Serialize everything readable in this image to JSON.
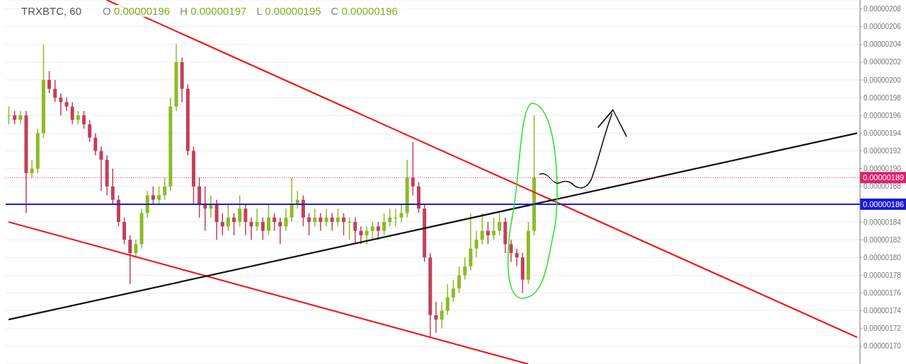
{
  "chart_data": {
    "type": "candlestick",
    "title": "TRXBTC, 60",
    "annotations": [
      "O 0.00000196",
      "H 0.00000197",
      "L 0.00000195",
      "C 0.00000196"
    ],
    "categories": [
      null,
      null,
      null,
      null,
      null,
      null,
      null,
      null,
      null,
      null,
      null,
      null,
      null,
      null,
      null,
      null,
      null,
      null,
      null,
      null,
      null,
      null,
      null,
      null,
      null,
      null,
      null,
      null,
      null,
      null,
      null,
      null,
      null,
      null,
      null,
      null,
      null,
      null,
      null,
      null,
      null,
      null,
      null,
      null,
      null,
      null,
      null,
      null,
      null,
      null,
      null,
      null,
      null,
      null,
      null,
      null,
      null,
      null,
      null,
      null,
      null,
      null,
      null,
      null,
      null,
      null,
      null,
      null,
      null,
      null,
      null,
      null,
      null,
      null,
      null,
      null,
      null,
      null,
      null,
      null,
      null,
      null,
      null,
      null,
      null,
      null,
      null,
      null,
      null,
      null,
      null,
      null,
      null,
      null,
      null,
      null,
      null,
      null,
      null,
      null,
      null,
      null,
      null,
      null,
      null,
      null,
      null,
      null,
      null,
      null,
      null,
      null,
      null,
      null,
      null,
      null,
      null,
      null,
      null,
      null,
      null,
      null,
      null,
      null,
      null,
      null,
      null,
      null,
      null,
      null,
      null,
      null,
      null,
      null,
      null,
      null,
      null,
      null,
      null,
      null,
      null,
      null,
      null,
      null,
      null,
      null,
      null,
      null
    ],
    "ohlc": [
      [
        1.96e-06,
        1.97e-06,
        1.95e-06,
        1.96e-06
      ],
      [
        1.96e-06,
        1.965e-06,
        1.95e-06,
        1.955e-06
      ],
      [
        1.955e-06,
        1.965e-06,
        1.95e-06,
        1.96e-06
      ],
      [
        1.96e-06,
        1.965e-06,
        1.85e-06,
        1.895e-06
      ],
      [
        1.895e-06,
        1.91e-06,
        1.89e-06,
        1.9e-06
      ],
      [
        1.9e-06,
        1.945e-06,
        1.895e-06,
        1.94e-06
      ],
      [
        1.94e-06,
        2.04e-06,
        1.935e-06,
        2e-06
      ],
      [
        2e-06,
        2.01e-06,
        1.985e-06,
        1.99e-06
      ],
      [
        1.99e-06,
        2e-06,
        1.975e-06,
        1.98e-06
      ],
      [
        1.98e-06,
        1.985e-06,
        1.96e-06,
        1.975e-06
      ],
      [
        1.975e-06,
        1.98e-06,
        1.965e-06,
        1.97e-06
      ],
      [
        1.97e-06,
        1.975e-06,
        1.95e-06,
        1.955e-06
      ],
      [
        1.955e-06,
        1.965e-06,
        1.95e-06,
        1.96e-06
      ],
      [
        1.96e-06,
        1.965e-06,
        1.945e-06,
        1.95e-06
      ],
      [
        1.95e-06,
        1.955e-06,
        1.93e-06,
        1.935e-06
      ],
      [
        1.935e-06,
        1.94e-06,
        1.915e-06,
        1.92e-06
      ],
      [
        1.92e-06,
        1.925e-06,
        1.875e-06,
        1.91e-06
      ],
      [
        1.91e-06,
        1.915e-06,
        1.87e-06,
        1.88e-06
      ],
      [
        1.88e-06,
        1.9e-06,
        1.86e-06,
        1.865e-06
      ],
      [
        1.865e-06,
        1.87e-06,
        1.835e-06,
        1.84e-06
      ],
      [
        1.84e-06,
        1.845e-06,
        1.815e-06,
        1.82e-06
      ],
      [
        1.82e-06,
        1.825e-06,
        1.77e-06,
        1.805e-06
      ],
      [
        1.805e-06,
        1.82e-06,
        1.8e-06,
        1.815e-06
      ],
      [
        1.815e-06,
        1.855e-06,
        1.81e-06,
        1.85e-06
      ],
      [
        1.85e-06,
        1.875e-06,
        1.845e-06,
        1.87e-06
      ],
      [
        1.87e-06,
        1.88e-06,
        1.86e-06,
        1.865e-06
      ],
      [
        1.865e-06,
        1.88e-06,
        1.86e-06,
        1.87e-06
      ],
      [
        1.87e-06,
        1.89e-06,
        1.865e-06,
        1.88e-06
      ],
      [
        1.88e-06,
        1.98e-06,
        1.875e-06,
        1.97e-06
      ],
      [
        1.97e-06,
        2.04e-06,
        1.965e-06,
        2.02e-06
      ],
      [
        2.02e-06,
        2.025e-06,
        1.975e-06,
        1.99e-06
      ],
      [
        1.99e-06,
        1.995e-06,
        1.915e-06,
        1.92e-06
      ],
      [
        1.92e-06,
        1.925e-06,
        1.86e-06,
        1.88e-06
      ],
      [
        1.88e-06,
        1.89e-06,
        1.845e-06,
        1.86e-06
      ],
      [
        1.86e-06,
        1.88e-06,
        1.83e-06,
        1.855e-06
      ],
      [
        1.855e-06,
        1.87e-06,
        1.845e-06,
        1.86e-06
      ],
      [
        1.86e-06,
        1.865e-06,
        1.82e-06,
        1.84e-06
      ],
      [
        1.84e-06,
        1.85e-06,
        1.825e-06,
        1.835e-06
      ],
      [
        1.835e-06,
        1.86e-06,
        1.83e-06,
        1.845e-06
      ],
      [
        1.845e-06,
        1.85e-06,
        1.825e-06,
        1.84e-06
      ],
      [
        1.84e-06,
        1.87e-06,
        1.835e-06,
        1.855e-06
      ],
      [
        1.855e-06,
        1.86e-06,
        1.825e-06,
        1.84e-06
      ],
      [
        1.84e-06,
        1.845e-06,
        1.82e-06,
        1.835e-06
      ],
      [
        1.835e-06,
        1.855e-06,
        1.83e-06,
        1.84e-06
      ],
      [
        1.84e-06,
        1.845e-06,
        1.82e-06,
        1.83e-06
      ],
      [
        1.83e-06,
        1.86e-06,
        1.825e-06,
        1.845e-06
      ],
      [
        1.845e-06,
        1.85e-06,
        1.83e-06,
        1.84e-06
      ],
      [
        1.84e-06,
        1.845e-06,
        1.815e-06,
        1.835e-06
      ],
      [
        1.835e-06,
        1.855e-06,
        1.83e-06,
        1.845e-06
      ],
      [
        1.845e-06,
        1.89e-06,
        1.84e-06,
        1.86e-06
      ],
      [
        1.86e-06,
        1.875e-06,
        1.855e-06,
        1.865e-06
      ],
      [
        1.865e-06,
        1.87e-06,
        1.835e-06,
        1.845e-06
      ],
      [
        1.845e-06,
        1.85e-06,
        1.825e-06,
        1.84e-06
      ],
      [
        1.84e-06,
        1.855e-06,
        1.835e-06,
        1.845e-06
      ],
      [
        1.845e-06,
        1.85e-06,
        1.83e-06,
        1.84e-06
      ],
      [
        1.84e-06,
        1.855e-06,
        1.835e-06,
        1.845e-06
      ],
      [
        1.845e-06,
        1.85e-06,
        1.83e-06,
        1.84e-06
      ],
      [
        1.84e-06,
        1.855e-06,
        1.835e-06,
        1.845e-06
      ],
      [
        1.845e-06,
        1.85e-06,
        1.825e-06,
        1.84e-06
      ],
      [
        1.84e-06,
        1.845e-06,
        1.82e-06,
        1.84e-06
      ],
      [
        1.84e-06,
        1.845e-06,
        1.815e-06,
        1.83e-06
      ],
      [
        1.83e-06,
        1.835e-06,
        1.815e-06,
        1.825e-06
      ],
      [
        1.825e-06,
        1.835e-06,
        1.815e-06,
        1.83e-06
      ],
      [
        1.83e-06,
        1.84e-06,
        1.82e-06,
        1.835e-06
      ],
      [
        1.835e-06,
        1.84e-06,
        1.82e-06,
        1.83e-06
      ],
      [
        1.83e-06,
        1.85e-06,
        1.825e-06,
        1.84e-06
      ],
      [
        1.84e-06,
        1.855e-06,
        1.835e-06,
        1.845e-06
      ],
      [
        1.845e-06,
        1.855e-06,
        1.835e-06,
        1.845e-06
      ],
      [
        1.845e-06,
        1.86e-06,
        1.84e-06,
        1.85e-06
      ],
      [
        1.85e-06,
        1.91e-06,
        1.845e-06,
        1.89e-06
      ],
      [
        1.89e-06,
        1.93e-06,
        1.87e-06,
        1.88e-06
      ],
      [
        1.88e-06,
        1.885e-06,
        1.85e-06,
        1.855e-06
      ],
      [
        1.855e-06,
        1.86e-06,
        1.795e-06,
        1.8e-06
      ],
      [
        1.8e-06,
        1.805e-06,
        1.71e-06,
        1.735e-06
      ],
      [
        1.735e-06,
        1.75e-06,
        1.715e-06,
        1.73e-06
      ],
      [
        1.73e-06,
        1.75e-06,
        1.72e-06,
        1.74e-06
      ],
      [
        1.74e-06,
        1.77e-06,
        1.735e-06,
        1.755e-06
      ],
      [
        1.755e-06,
        1.775e-06,
        1.75e-06,
        1.765e-06
      ],
      [
        1.765e-06,
        1.79e-06,
        1.76e-06,
        1.78e-06
      ],
      [
        1.78e-06,
        1.8e-06,
        1.775e-06,
        1.79e-06
      ],
      [
        1.79e-06,
        1.85e-06,
        1.785e-06,
        1.81e-06
      ],
      [
        1.81e-06,
        1.83e-06,
        1.8e-06,
        1.82e-06
      ],
      [
        1.82e-06,
        1.85e-06,
        1.815e-06,
        1.83e-06
      ],
      [
        1.83e-06,
        1.84e-06,
        1.815e-06,
        1.825e-06
      ],
      [
        1.825e-06,
        1.845e-06,
        1.82e-06,
        1.83e-06
      ],
      [
        1.83e-06,
        1.85e-06,
        1.825e-06,
        1.84e-06
      ],
      [
        1.84e-06,
        1.845e-06,
        1.805e-06,
        1.815e-06
      ],
      [
        1.815e-06,
        1.82e-06,
        1.795e-06,
        1.805e-06
      ],
      [
        1.805e-06,
        1.81e-06,
        1.79e-06,
        1.8e-06
      ],
      [
        1.8e-06,
        1.805e-06,
        1.76e-06,
        1.775e-06
      ],
      [
        1.775e-06,
        1.84e-06,
        1.77e-06,
        1.83e-06
      ],
      [
        1.83e-06,
        1.96e-06,
        1.825e-06,
        1.89e-06
      ],
      null,
      null,
      null,
      null,
      null,
      null,
      null,
      null,
      null,
      null,
      null,
      null,
      null,
      null,
      null,
      null,
      null,
      null,
      null,
      null,
      null,
      null,
      null,
      null,
      null,
      null,
      null,
      null,
      null,
      null,
      null,
      null,
      null,
      null,
      null,
      null,
      null,
      null,
      null,
      null,
      null,
      null,
      null,
      null,
      null,
      null,
      null,
      null,
      null,
      null,
      null,
      null,
      null,
      null,
      null,
      null
    ],
    "series": [
      {
        "type": "line",
        "color": "#ee1c1c",
        "values": [
          null,
          null,
          null,
          null,
          null,
          null,
          null,
          null,
          null,
          null,
          null,
          null,
          null,
          null,
          null,
          null,
          null,
          2.09e-06,
          null,
          null,
          null,
          null,
          null,
          null,
          null,
          null,
          null,
          null,
          null,
          null,
          null,
          null,
          null,
          null,
          null,
          null,
          null,
          null,
          null,
          null,
          null,
          null,
          null,
          null,
          null,
          null,
          null,
          null,
          null,
          null,
          null,
          null,
          null,
          null,
          null,
          null,
          null,
          null,
          null,
          null,
          null,
          null,
          null,
          null,
          null,
          null,
          null,
          null,
          null,
          null,
          null,
          null,
          null,
          null,
          null,
          null,
          null,
          null,
          null,
          null,
          null,
          null,
          null,
          null,
          null,
          null,
          null,
          null,
          null,
          null,
          null,
          null,
          null,
          null,
          null,
          null,
          null,
          null,
          null,
          null,
          null,
          null,
          null,
          null,
          null,
          null,
          null,
          null,
          null,
          null,
          null,
          null,
          null,
          null,
          null,
          null,
          null,
          null,
          null,
          null,
          null,
          null,
          null,
          null,
          null,
          null,
          null,
          null,
          null,
          null,
          null,
          null,
          null,
          null,
          null,
          null,
          null,
          null,
          null,
          null,
          null,
          null,
          null,
          null,
          null,
          null,
          null,
          1.71e-06
        ]
      },
      {
        "type": "line",
        "color": "#ee1c1c",
        "values": [
          1.84e-06,
          null,
          null,
          null,
          null,
          null,
          null,
          null,
          null,
          null,
          null,
          null,
          null,
          null,
          null,
          null,
          null,
          null,
          null,
          null,
          null,
          null,
          null,
          null,
          null,
          null,
          null,
          null,
          null,
          null,
          null,
          null,
          null,
          null,
          null,
          null,
          null,
          null,
          null,
          null,
          null,
          null,
          null,
          null,
          null,
          null,
          null,
          null,
          null,
          null,
          null,
          null,
          null,
          null,
          null,
          null,
          null,
          null,
          null,
          null,
          null,
          null,
          null,
          null,
          null,
          null,
          null,
          null,
          null,
          null,
          null,
          null,
          null,
          null,
          null,
          null,
          null,
          null,
          null,
          null,
          null,
          null,
          null,
          null,
          null,
          null,
          null,
          null,
          null,
          null,
          1.68e-06,
          null,
          null,
          null,
          null,
          null,
          null,
          null,
          null,
          null,
          null,
          null,
          null,
          null,
          null,
          null,
          null,
          null,
          null,
          null,
          null,
          null,
          null,
          null,
          null,
          null,
          null,
          null,
          null,
          null,
          null,
          null,
          null,
          null,
          null,
          null,
          null,
          null,
          null,
          null,
          null,
          null,
          null,
          null,
          null,
          null,
          null,
          null,
          null,
          null,
          null,
          null,
          null,
          null,
          null,
          null,
          null,
          null
        ]
      },
      {
        "type": "line",
        "color": "#111111",
        "values": [
          1.73e-06,
          null,
          null,
          null,
          null,
          null,
          null,
          null,
          null,
          null,
          null,
          null,
          null,
          null,
          null,
          null,
          null,
          null,
          null,
          null,
          null,
          null,
          null,
          null,
          null,
          null,
          null,
          null,
          null,
          null,
          null,
          null,
          null,
          null,
          null,
          null,
          null,
          null,
          null,
          null,
          null,
          null,
          null,
          null,
          null,
          null,
          null,
          null,
          null,
          null,
          null,
          null,
          null,
          null,
          null,
          null,
          null,
          null,
          null,
          null,
          null,
          null,
          null,
          null,
          null,
          null,
          null,
          null,
          null,
          null,
          null,
          null,
          null,
          null,
          null,
          null,
          null,
          null,
          null,
          null,
          null,
          null,
          null,
          null,
          null,
          null,
          null,
          null,
          null,
          null,
          null,
          null,
          null,
          null,
          null,
          null,
          null,
          null,
          null,
          null,
          null,
          null,
          null,
          null,
          null,
          null,
          null,
          null,
          null,
          null,
          null,
          null,
          null,
          null,
          null,
          null,
          null,
          null,
          null,
          null,
          null,
          null,
          null,
          null,
          null,
          null,
          null,
          null,
          null,
          null,
          null,
          null,
          null,
          null,
          null,
          null,
          null,
          null,
          null,
          null,
          null,
          null,
          null,
          null,
          null,
          null,
          null,
          1.94e-06
        ]
      }
    ],
    "ylim": [
      1.68e-06,
      2.09e-06
    ],
    "yticks": [
      {
        "value": 1.7e-06,
        "label": "0.00000170"
      },
      {
        "value": 1.72e-06,
        "label": "0.00000172"
      },
      {
        "value": 1.74e-06,
        "label": "0.00000174"
      },
      {
        "value": 1.76e-06,
        "label": "0.00000176"
      },
      {
        "value": 1.78e-06,
        "label": "0.00000178"
      },
      {
        "value": 1.8e-06,
        "label": "0.00000180"
      },
      {
        "value": 1.82e-06,
        "label": "0.00000182"
      },
      {
        "value": 1.84e-06,
        "label": "0.00000184"
      },
      {
        "value": 1.88e-06,
        "label": "0.00000188"
      },
      {
        "value": 1.9e-06,
        "label": "0.00000190"
      },
      {
        "value": 1.92e-06,
        "label": "0.00000192"
      },
      {
        "value": 1.94e-06,
        "label": "0.00000194"
      },
      {
        "value": 1.96e-06,
        "label": "0.00000196"
      },
      {
        "value": 1.98e-06,
        "label": "0.00000198"
      },
      {
        "value": 2e-06,
        "label": "0.00000200"
      },
      {
        "value": 2.02e-06,
        "label": "0.00000202"
      },
      {
        "value": 2.04e-06,
        "label": "0.00000204"
      },
      {
        "value": 2.06e-06,
        "label": "0.00000206"
      },
      {
        "value": 2.08e-06,
        "label": "0.00000208"
      }
    ],
    "ref_lines": [
      {
        "axis": "y",
        "value": 1.86e-06,
        "label": "0.00000186",
        "color": "#1a1ad6",
        "line_style": "solid"
      },
      {
        "axis": "y",
        "value": 1.89e-06,
        "label": "0.00000189",
        "color": "#e0206e",
        "line_style": "dotted"
      }
    ],
    "grid": "y",
    "tick_labels": "y"
  }
}
